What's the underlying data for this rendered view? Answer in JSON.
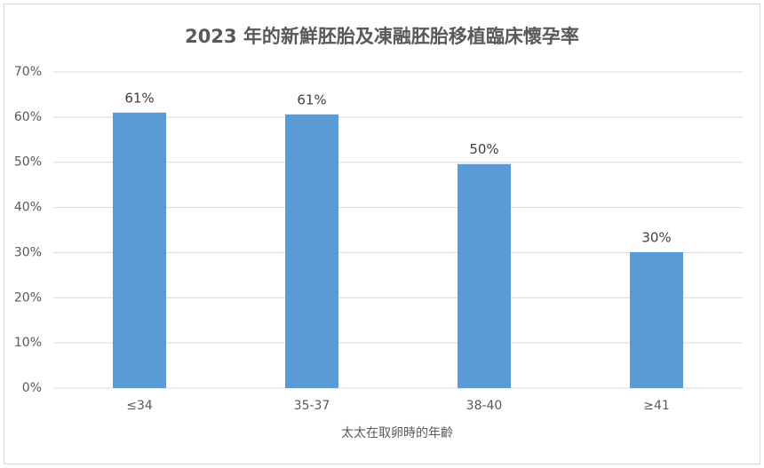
{
  "chart_data": {
    "type": "bar",
    "title": "2023 年的新鮮胚胎及凍融胚胎移植臨床懷孕率",
    "x_label": "太太在取卵時的年齡",
    "categories": [
      "≤34",
      "35-37",
      "38-40",
      "≥41"
    ],
    "values": [
      61,
      60.6,
      49.6,
      30.1
    ],
    "value_labels": [
      "61%",
      "61%",
      "50%",
      "30%"
    ],
    "color": "#5b9bd5",
    "ylim": [
      0,
      70
    ],
    "yticks": [
      {
        "value": 0,
        "label": "0%"
      },
      {
        "value": 10,
        "label": "10%"
      },
      {
        "value": 20,
        "label": "20%"
      },
      {
        "value": 30,
        "label": "30%"
      },
      {
        "value": 40,
        "label": "40%"
      },
      {
        "value": 50,
        "label": "50%"
      },
      {
        "value": 60,
        "label": "60%"
      },
      {
        "value": 70,
        "label": "70%"
      }
    ],
    "grid": true
  }
}
